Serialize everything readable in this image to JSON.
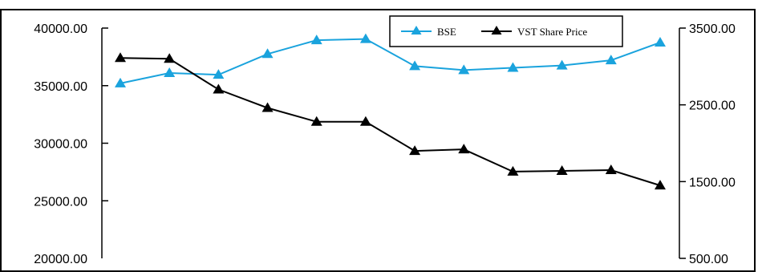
{
  "chart_data": {
    "type": "line",
    "title": "",
    "xlabel": "",
    "ylabel": "",
    "grid": false,
    "legend_position": "top-right",
    "x_count": 12,
    "y_left": {
      "range": [
        20000,
        40000
      ],
      "ticks": [
        40000,
        35000,
        30000,
        25000,
        20000
      ],
      "tick_labels": [
        "40000.00",
        "35000.00",
        "30000.00",
        "25000.00",
        "20000.00"
      ]
    },
    "y_right": {
      "range": [
        500,
        3500
      ],
      "ticks": [
        3500,
        2500,
        1500,
        500
      ],
      "tick_labels": [
        "3500.00",
        "2500.00",
        "1500.00",
        "500.00"
      ]
    },
    "series": [
      {
        "name": "BSE",
        "axis": "left",
        "color": "#1aa3dd",
        "marker": "triangle",
        "values": [
          35200,
          36100,
          35950,
          37750,
          38950,
          39050,
          36700,
          36350,
          36550,
          36750,
          37200,
          38750
        ]
      },
      {
        "name": "VST Share Price",
        "axis": "right",
        "color": "#000000",
        "marker": "triangle",
        "values": [
          3110,
          3100,
          2700,
          2460,
          2280,
          2280,
          1900,
          1920,
          1630,
          1640,
          1650,
          1450
        ]
      }
    ]
  }
}
